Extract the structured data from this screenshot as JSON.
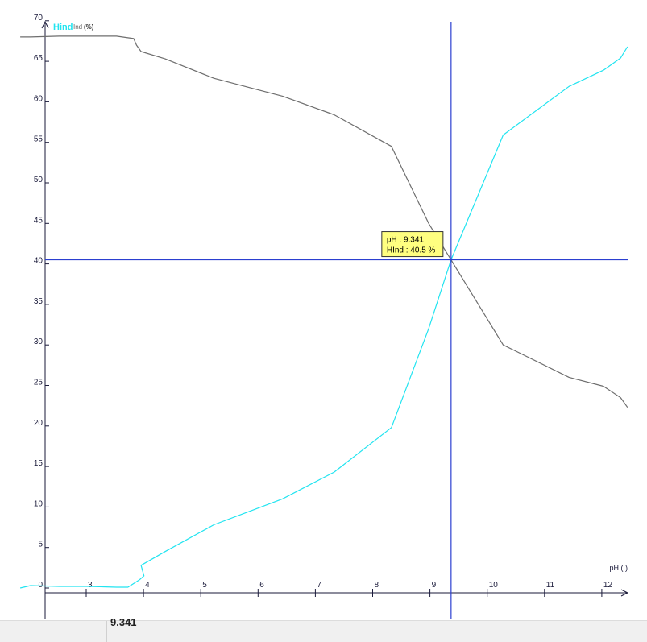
{
  "chart_data": {
    "type": "line",
    "legend": {
      "series1": "Hind",
      "series2": "Ind",
      "unit": "(%)"
    },
    "xlabel": "pH ( )",
    "xlim": [
      1.8,
      12.4
    ],
    "ylim": [
      0,
      70
    ],
    "x_ticks": [
      3,
      4,
      5,
      6,
      7,
      8,
      9,
      10,
      11,
      12
    ],
    "y_ticks": [
      0,
      5,
      10,
      15,
      20,
      25,
      30,
      35,
      40,
      45,
      50,
      55,
      60,
      65,
      70
    ],
    "series": [
      {
        "name": "Hind",
        "color": "#22e4f0",
        "x": [
          1.82,
          2.0,
          2.5,
          3.0,
          3.5,
          3.7,
          3.9,
          3.98,
          3.93,
          4.35,
          5.2,
          6.4,
          7.3,
          8.3,
          8.95,
          9.341,
          10.25,
          11.4,
          12.0,
          12.3,
          12.42
        ],
        "y": [
          0.0,
          0.3,
          0.2,
          0.2,
          0.1,
          0.1,
          1.0,
          1.5,
          2.8,
          4.5,
          7.8,
          11.0,
          14.3,
          19.8,
          32.0,
          40.5,
          55.9,
          61.9,
          63.9,
          65.4,
          66.8
        ]
      },
      {
        "name": "Ind",
        "color": "#6e6e6e",
        "x": [
          1.82,
          2.0,
          2.5,
          3.0,
          3.5,
          3.8,
          3.85,
          3.93,
          4.35,
          5.2,
          6.4,
          7.3,
          8.3,
          8.95,
          9.341,
          10.25,
          11.4,
          12.0,
          12.3,
          12.42
        ],
        "y": [
          68.0,
          68.0,
          68.1,
          68.1,
          68.1,
          67.8,
          67.0,
          66.2,
          65.3,
          62.9,
          60.7,
          58.4,
          54.5,
          45.0,
          40.5,
          30.0,
          26.0,
          24.9,
          23.5,
          22.3
        ]
      }
    ],
    "crosshair": {
      "x": 9.341,
      "y": 40.5,
      "color": "#2b3fd0"
    },
    "tooltip": {
      "line1": "pH : 9.341",
      "line2": "HInd : 40.5 %"
    },
    "axis_color": "#1a1a3a",
    "grid": false
  },
  "statusbar": {
    "value": "9.341"
  }
}
